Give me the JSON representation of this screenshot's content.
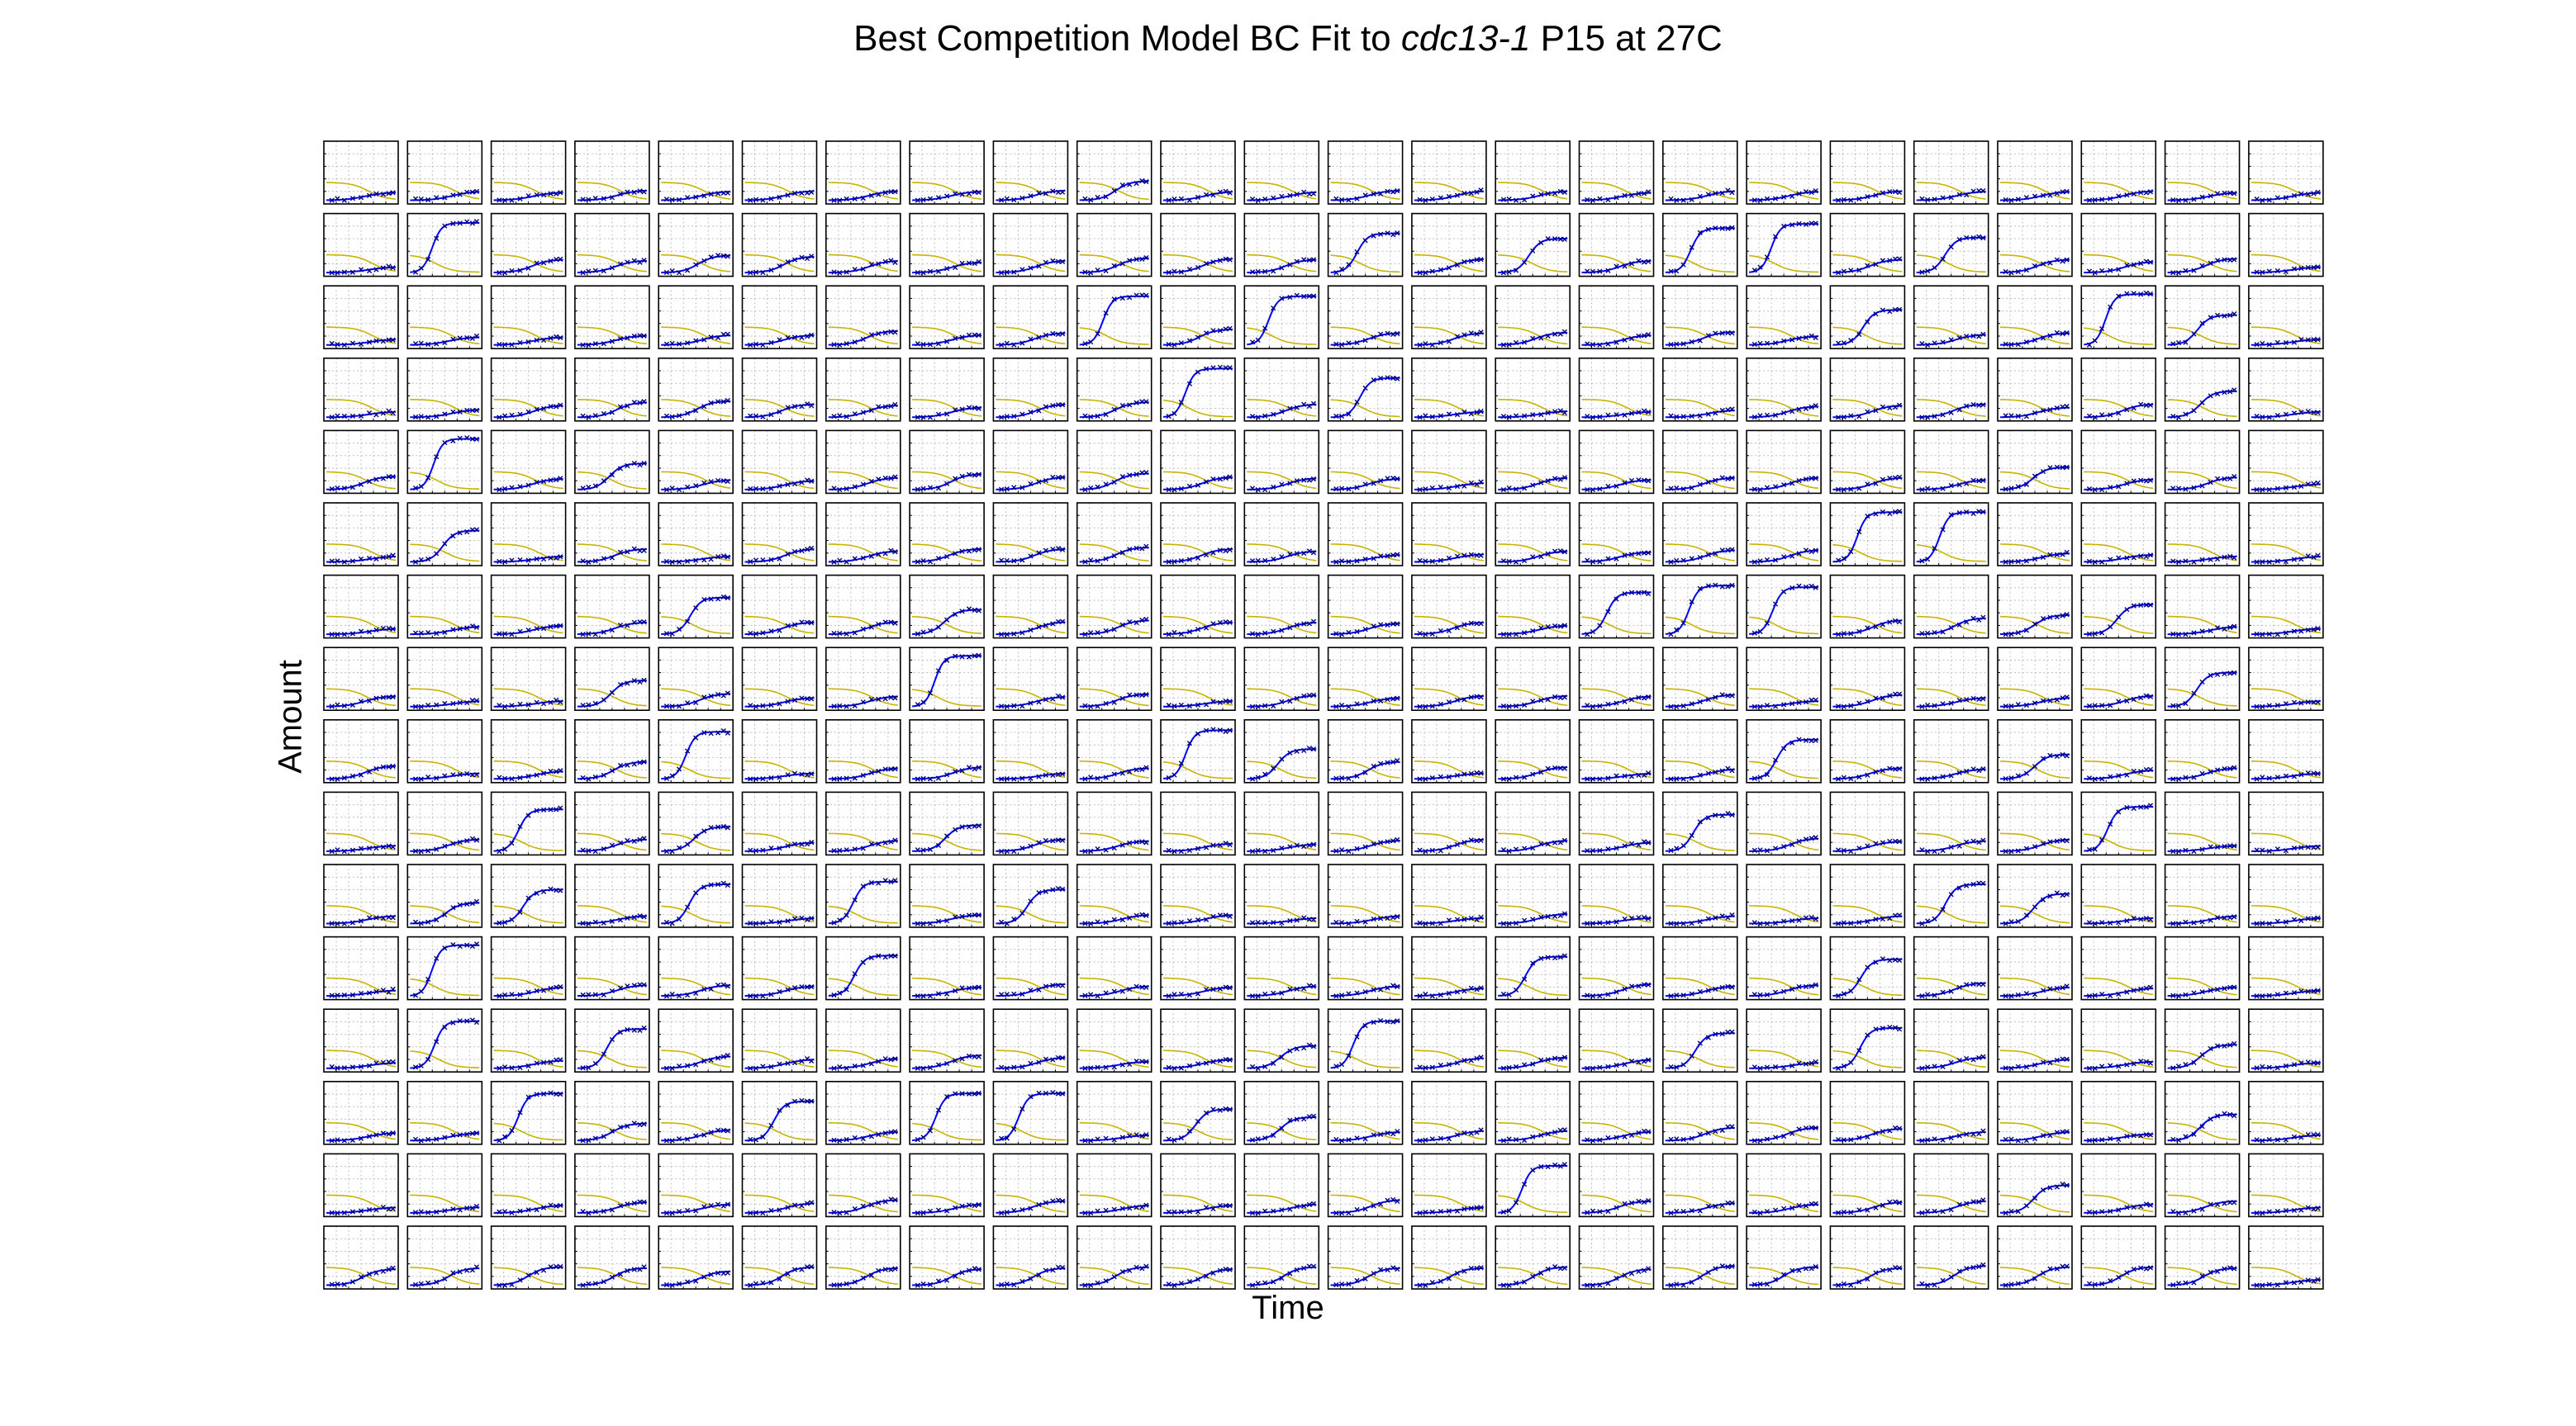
{
  "chart_data": {
    "type": "line",
    "title_parts": {
      "before": "Best Competition Model BC Fit to ",
      "italic": "cdc13-1",
      "after": " P15 at 27C"
    },
    "xlabel": "Time",
    "ylabel": "Amount",
    "grid": true,
    "legend": "none",
    "layout": {
      "rows": 16,
      "cols": 24
    },
    "colors": {
      "fit": "#0000ff",
      "observed": "#000080",
      "nutrient": "#c8b400",
      "grid": "#bfbfbf",
      "frame": "#000000"
    },
    "curve_model": "logistic",
    "row_gradients": [
      [
        0.1,
        0.12,
        0.1,
        0.14,
        0.12,
        0.13,
        0.13,
        0.12,
        0.14,
        0.32,
        0.12,
        0.11,
        0.14,
        0.13,
        0.13,
        0.1,
        0.13,
        0.12,
        0.13,
        0.12,
        0.12,
        0.13,
        0.1,
        0.1
      ],
      [
        0.06,
        0.9,
        0.2,
        0.18,
        0.28,
        0.26,
        0.18,
        0.15,
        0.18,
        0.23,
        0.22,
        0.2,
        0.7,
        0.21,
        0.6,
        0.18,
        0.8,
        0.88,
        0.2,
        0.62,
        0.2,
        0.16,
        0.22,
        0.06
      ],
      [
        0.06,
        0.1,
        0.1,
        0.13,
        0.14,
        0.14,
        0.22,
        0.14,
        0.18,
        0.88,
        0.25,
        0.88,
        0.18,
        0.18,
        0.19,
        0.14,
        0.2,
        0.12,
        0.62,
        0.15,
        0.18,
        0.92,
        0.52,
        0.06
      ],
      [
        0.06,
        0.1,
        0.18,
        0.24,
        0.26,
        0.2,
        0.18,
        0.14,
        0.2,
        0.24,
        0.88,
        0.2,
        0.7,
        0.06,
        0.07,
        0.06,
        0.09,
        0.16,
        0.18,
        0.2,
        0.14,
        0.2,
        0.45,
        0.06
      ],
      [
        0.2,
        0.92,
        0.16,
        0.45,
        0.14,
        0.12,
        0.18,
        0.25,
        0.19,
        0.26,
        0.19,
        0.17,
        0.16,
        0.08,
        0.18,
        0.14,
        0.18,
        0.18,
        0.18,
        0.14,
        0.38,
        0.15,
        0.19,
        0.06
      ],
      [
        0.06,
        0.55,
        0.06,
        0.2,
        0.06,
        0.2,
        0.16,
        0.2,
        0.2,
        0.23,
        0.2,
        0.16,
        0.09,
        0.1,
        0.16,
        0.14,
        0.18,
        0.18,
        0.9,
        0.9,
        0.12,
        0.09,
        0.06,
        0.06
      ],
      [
        0.06,
        0.1,
        0.12,
        0.18,
        0.65,
        0.18,
        0.19,
        0.42,
        0.19,
        0.22,
        0.18,
        0.18,
        0.16,
        0.18,
        0.12,
        0.75,
        0.88,
        0.85,
        0.22,
        0.26,
        0.32,
        0.52,
        0.1,
        0.06
      ],
      [
        0.15,
        0.06,
        0.06,
        0.45,
        0.2,
        0.12,
        0.15,
        0.92,
        0.14,
        0.19,
        0.06,
        0.17,
        0.12,
        0.16,
        0.16,
        0.15,
        0.18,
        0.06,
        0.18,
        0.12,
        0.12,
        0.16,
        0.6,
        0.06
      ],
      [
        0.2,
        0.06,
        0.1,
        0.28,
        0.85,
        0.06,
        0.16,
        0.18,
        0.06,
        0.16,
        0.88,
        0.52,
        0.28,
        0.06,
        0.18,
        0.06,
        0.14,
        0.7,
        0.16,
        0.14,
        0.42,
        0.12,
        0.16,
        0.06
      ],
      [
        0.06,
        0.18,
        0.75,
        0.18,
        0.42,
        0.12,
        0.16,
        0.45,
        0.18,
        0.15,
        0.1,
        0.09,
        0.16,
        0.18,
        0.16,
        0.12,
        0.65,
        0.2,
        0.14,
        0.15,
        0.18,
        0.8,
        0.06,
        0.06
      ],
      [
        0.1,
        0.35,
        0.6,
        0.1,
        0.7,
        0.06,
        0.75,
        0.12,
        0.6,
        0.12,
        0.12,
        0.06,
        0.1,
        0.06,
        0.14,
        0.06,
        0.1,
        0.06,
        0.1,
        0.7,
        0.52,
        0.06,
        0.1,
        0.06
      ],
      [
        0.06,
        0.92,
        0.12,
        0.16,
        0.16,
        0.14,
        0.72,
        0.12,
        0.18,
        0.14,
        0.12,
        0.14,
        0.14,
        0.1,
        0.7,
        0.18,
        0.14,
        0.16,
        0.65,
        0.2,
        0.12,
        0.1,
        0.12,
        0.06
      ],
      [
        0.06,
        0.85,
        0.1,
        0.7,
        0.18,
        0.12,
        0.14,
        0.2,
        0.16,
        0.08,
        0.12,
        0.38,
        0.85,
        0.15,
        0.16,
        0.12,
        0.62,
        0.06,
        0.72,
        0.16,
        0.12,
        0.08,
        0.4,
        0.06
      ],
      [
        0.1,
        0.1,
        0.85,
        0.28,
        0.16,
        0.7,
        0.12,
        0.85,
        0.85,
        0.06,
        0.55,
        0.4,
        0.12,
        0.14,
        0.14,
        0.12,
        0.2,
        0.2,
        0.18,
        0.12,
        0.12,
        0.08,
        0.45,
        0.06
      ],
      [
        0.06,
        0.06,
        0.1,
        0.16,
        0.12,
        0.14,
        0.2,
        0.12,
        0.18,
        0.1,
        0.1,
        0.12,
        0.2,
        0.06,
        0.85,
        0.18,
        0.14,
        0.12,
        0.16,
        0.18,
        0.48,
        0.12,
        0.18,
        0.06
      ],
      [
        0.26,
        0.28,
        0.3,
        0.28,
        0.22,
        0.3,
        0.28,
        0.26,
        0.28,
        0.3,
        0.26,
        0.3,
        0.28,
        0.28,
        0.3,
        0.26,
        0.32,
        0.3,
        0.28,
        0.32,
        0.3,
        0.3,
        0.28,
        0.06
      ]
    ]
  }
}
